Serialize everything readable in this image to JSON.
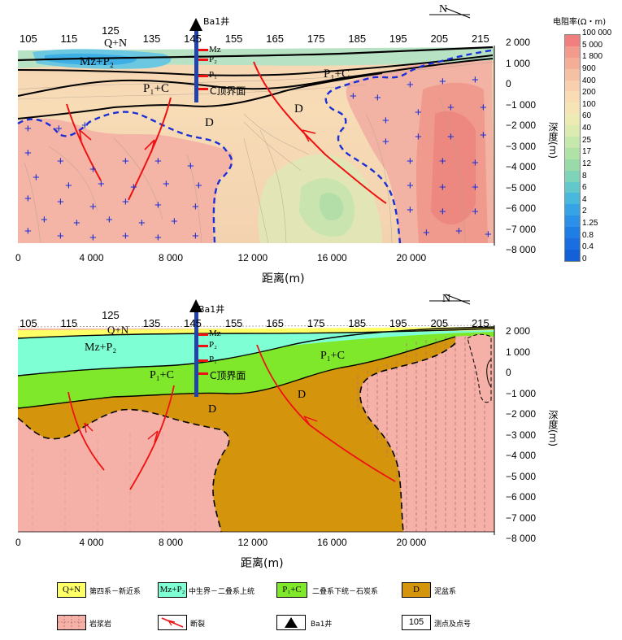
{
  "well": {
    "name": "Ba1井"
  },
  "north_label": "N",
  "stations": [
    "105",
    "115",
    "125",
    "135",
    "145",
    "155",
    "165",
    "175",
    "185",
    "195",
    "205",
    "215"
  ],
  "depth_ticks": [
    "2 000",
    "1 000",
    "0",
    "−1 000",
    "−2 000",
    "−3 000",
    "−4 000",
    "−5 000",
    "−6 000",
    "−7 000",
    "−8 000"
  ],
  "distance_ticks": [
    "0",
    "4 000",
    "8 000",
    "12 000",
    "16 000",
    "20 000"
  ],
  "x_axis_label": "距离(m)",
  "y_axis_label": "深度(m)",
  "colorbar": {
    "title": "电阻率(Ω・m)",
    "labels": [
      "100 000",
      "5 000",
      "1 800",
      "900",
      "400",
      "200",
      "100",
      "60",
      "40",
      "25",
      "17",
      "12",
      "8",
      "6",
      "4",
      "2",
      "1.25",
      "0.8",
      "0.4",
      "0"
    ],
    "colors": [
      "#f08080",
      "#f29a8c",
      "#f4ae98",
      "#f6c0a4",
      "#f8d0b0",
      "#f9dbb6",
      "#f6e3b6",
      "#eeeab4",
      "#dcecb0",
      "#c6e8ac",
      "#b0e2a8",
      "#98dba8",
      "#7ed3b8",
      "#62c8cc",
      "#48b8dc",
      "#36a4e4",
      "#2a90e8",
      "#1f7ee6",
      "#1a6ee0",
      "#1460d8"
    ]
  },
  "geo_labels": {
    "qn": "Q+N",
    "mz_p2": "Mz+P₂",
    "p1c": "P₁+C",
    "d": "D",
    "well_mz": "Mz",
    "well_p2": "P₂",
    "well_p1": "P₁",
    "well_c": "C顶界面"
  },
  "legend": [
    {
      "symbol": "Q+N",
      "text": "第四系－新近系",
      "color": "#ffff66"
    },
    {
      "symbol": "Mz+P₂",
      "text": "中生界－二叠系上统",
      "color": "#7fffd4"
    },
    {
      "symbol": "P₁+C",
      "text": "二叠系下统－石炭系",
      "color": "#7fe82a"
    },
    {
      "symbol": "D",
      "text": "泥盆系",
      "color": "#d4950c"
    },
    {
      "symbol": "",
      "text": "岩浆岩",
      "color": "#f5b0a8"
    },
    {
      "symbol": "",
      "text": "断裂",
      "color": "#ff2020"
    },
    {
      "symbol": "",
      "text": "Ba1井",
      "color": "#000000"
    },
    {
      "symbol": "105",
      "text": "测点及点号",
      "color": "#ffffff"
    }
  ]
}
